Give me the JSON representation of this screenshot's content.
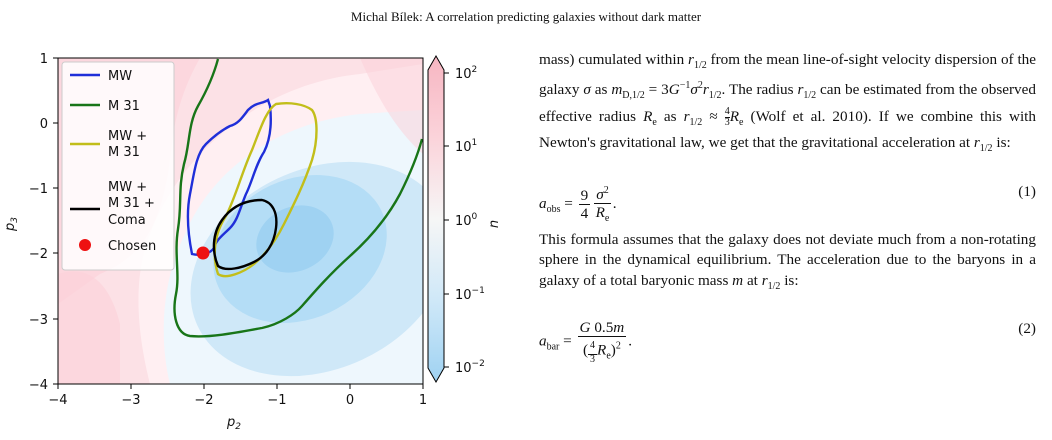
{
  "header": {
    "running_title": "Michal Bílek: A correlation predicting galaxies without dark matter"
  },
  "figure": {
    "xlabel": "p",
    "xlabel_sub": "2",
    "ylabel": "p",
    "ylabel_sub": "3",
    "x_ticks": [
      "−4",
      "−3",
      "−2",
      "−1",
      "0",
      "1"
    ],
    "y_ticks": [
      "1",
      "0",
      "−1",
      "−2",
      "−3",
      "−4"
    ],
    "colorbar_label": "n",
    "colorbar_ticks": [
      {
        "base": "10",
        "exp": "2"
      },
      {
        "base": "10",
        "exp": "1"
      },
      {
        "base": "10",
        "exp": "0"
      },
      {
        "base": "10",
        "exp": "−1"
      },
      {
        "base": "10",
        "exp": "−2"
      }
    ],
    "legend": {
      "mw": "MW",
      "m31": "M 31",
      "mw_m31_line1": "MW +",
      "mw_m31_line2": "M 31",
      "all_line1": "MW +",
      "all_line2": "M 31 +",
      "all_line3": "Coma",
      "chosen": "Chosen"
    },
    "colors": {
      "mw": "#1f2fd9",
      "m31": "#187518",
      "mw_m31": "#c2be1a",
      "all": "#000000",
      "chosen": "#ee1111"
    },
    "chosen_point": {
      "p2": -2,
      "p3": -2
    }
  },
  "text": {
    "p1_a": "mass) cumulated within ",
    "p1_b": " from the mean line-of-sight velocity dispersion of the galaxy ",
    "p1_c": " as ",
    "p1_d": ". The radius ",
    "p1_e": " can be estimated from the observed effective radius ",
    "p1_f": " as ",
    "p1_g": " (Wolf et al. 2010). If we combine this with Newton's gravitational law, we get that the gravitational acceleration at ",
    "p1_h": " is:",
    "eq1_number": "(1)",
    "p2_a": "This formula assumes that the galaxy does not deviate much from a non-rotating sphere in the dynamical equilibrium. The acceleration due to the baryons in a galaxy of a total baryonic mass ",
    "p2_b": " at ",
    "p2_c": " is:",
    "eq2_number": "(2)"
  }
}
